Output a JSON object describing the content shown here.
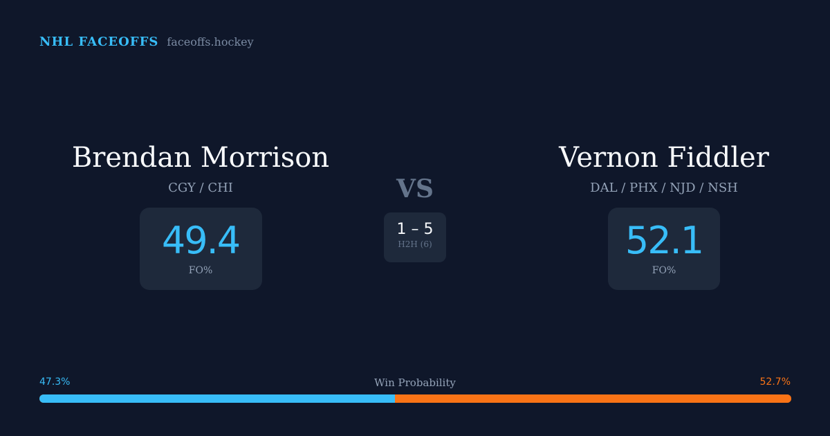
{
  "brand": {
    "name": "NHL FACEOFFS",
    "site": "faceoffs.hockey"
  },
  "players": [
    {
      "name": "Brendan Morrison",
      "teams": "CGY / CHI",
      "fo_pct": "49.4",
      "fo_label": "FO%"
    },
    {
      "name": "Vernon Fiddler",
      "teams": "DAL / PHX / NJD / NSH",
      "fo_pct": "52.1",
      "fo_label": "FO%"
    }
  ],
  "vs": "VS",
  "h2h": {
    "score": "1 – 5",
    "label": "H2H (6)"
  },
  "win_probability": {
    "label": "Win Probability",
    "left": "47.3%",
    "right": "52.7%",
    "left_value": 47.3,
    "right_value": 52.7
  },
  "colors": {
    "left": "#38bdf8",
    "right": "#f97316",
    "background": "#0f172a",
    "card": "#1e293b"
  }
}
